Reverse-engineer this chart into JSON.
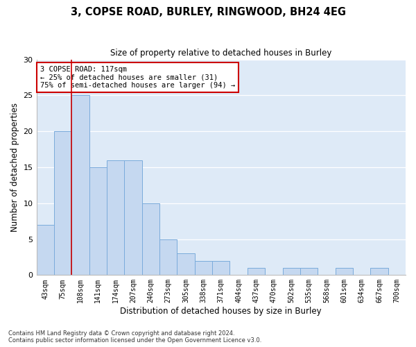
{
  "title1": "3, COPSE ROAD, BURLEY, RINGWOOD, BH24 4EG",
  "title2": "Size of property relative to detached houses in Burley",
  "xlabel": "Distribution of detached houses by size in Burley",
  "ylabel": "Number of detached properties",
  "footnote1": "Contains HM Land Registry data © Crown copyright and database right 2024.",
  "footnote2": "Contains public sector information licensed under the Open Government Licence v3.0.",
  "bar_labels": [
    "43sqm",
    "75sqm",
    "108sqm",
    "141sqm",
    "174sqm",
    "207sqm",
    "240sqm",
    "273sqm",
    "305sqm",
    "338sqm",
    "371sqm",
    "404sqm",
    "437sqm",
    "470sqm",
    "502sqm",
    "535sqm",
    "568sqm",
    "601sqm",
    "634sqm",
    "667sqm",
    "700sqm"
  ],
  "bar_values": [
    7,
    20,
    25,
    15,
    16,
    16,
    10,
    5,
    3,
    2,
    2,
    0,
    1,
    0,
    1,
    1,
    0,
    1,
    0,
    1,
    0
  ],
  "bar_color": "#c5d8f0",
  "bar_edge_color": "#7aabdb",
  "bg_color": "#deeaf7",
  "grid_color": "#ffffff",
  "annotation_text": "3 COPSE ROAD: 117sqm\n← 25% of detached houses are smaller (31)\n75% of semi-detached houses are larger (94) →",
  "vline_color": "#cc0000",
  "annotation_box_color": "#cc0000",
  "ylim": [
    0,
    30
  ],
  "yticks": [
    0,
    5,
    10,
    15,
    20,
    25,
    30
  ]
}
